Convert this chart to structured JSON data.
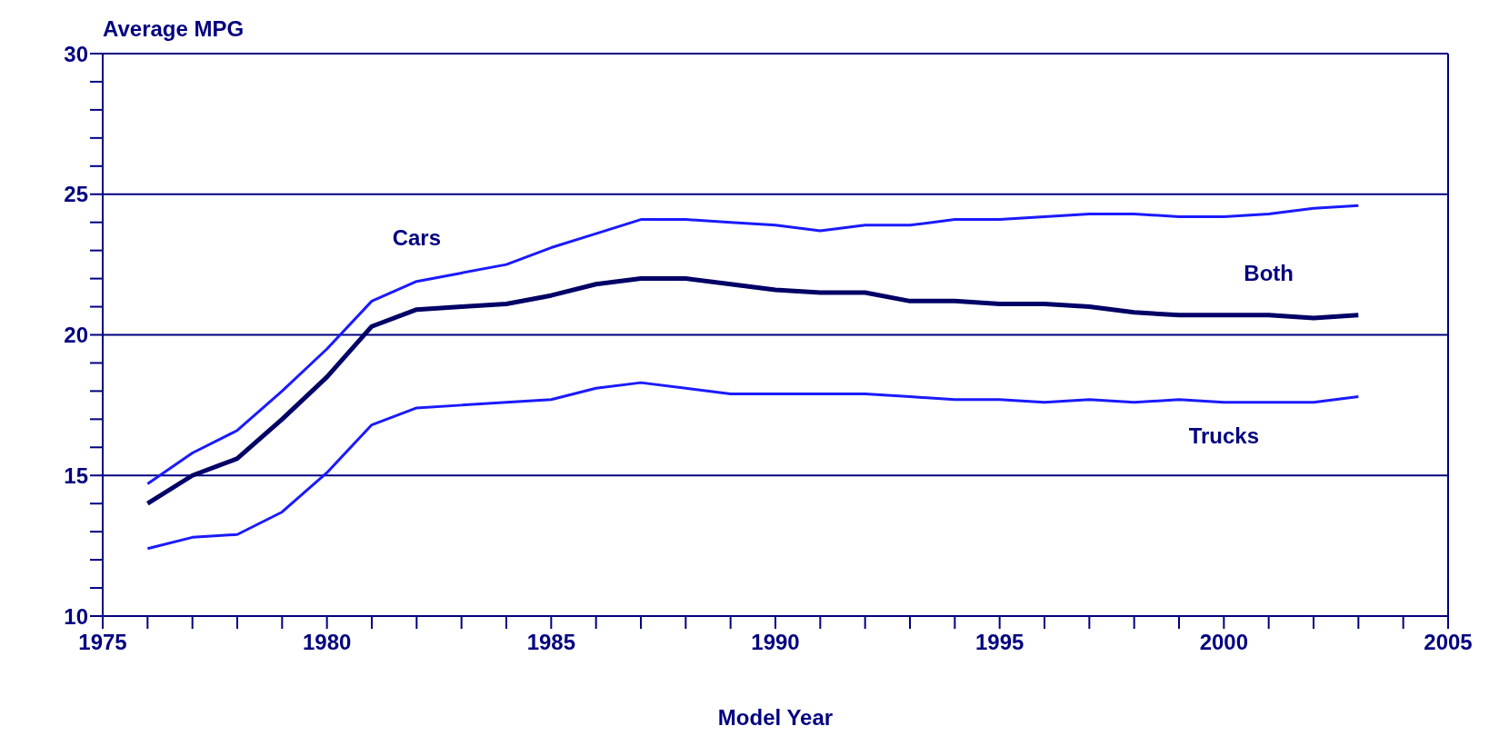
{
  "chart_data": {
    "type": "line",
    "ylabel": "Average MPG",
    "xlabel": "Model Year",
    "x": [
      1976,
      1977,
      1978,
      1979,
      1980,
      1981,
      1982,
      1983,
      1984,
      1985,
      1986,
      1987,
      1988,
      1989,
      1990,
      1991,
      1992,
      1993,
      1994,
      1995,
      1996,
      1997,
      1998,
      1999,
      2000,
      2001,
      2002,
      2003
    ],
    "series": [
      {
        "name": "Cars",
        "color": "#1a1aff",
        "values": [
          14.7,
          15.8,
          16.6,
          18.0,
          19.5,
          21.2,
          21.9,
          22.2,
          22.5,
          23.1,
          23.6,
          24.1,
          24.1,
          24.0,
          23.9,
          23.7,
          23.9,
          23.9,
          24.1,
          24.1,
          24.2,
          24.3,
          24.3,
          24.2,
          24.2,
          24.3,
          24.5,
          24.6
        ]
      },
      {
        "name": "Both",
        "color": "#000066",
        "values": [
          14.0,
          15.0,
          15.6,
          17.0,
          18.5,
          20.3,
          20.9,
          21.0,
          21.1,
          21.4,
          21.8,
          22.0,
          22.0,
          21.8,
          21.6,
          21.5,
          21.5,
          21.2,
          21.2,
          21.1,
          21.1,
          21.0,
          20.8,
          20.7,
          20.7,
          20.7,
          20.6,
          20.7
        ]
      },
      {
        "name": "Trucks",
        "color": "#1a1aff",
        "values": [
          12.4,
          12.8,
          12.9,
          13.7,
          15.1,
          16.8,
          17.4,
          17.5,
          17.6,
          17.7,
          18.1,
          18.3,
          18.1,
          17.9,
          17.9,
          17.9,
          17.9,
          17.8,
          17.7,
          17.7,
          17.6,
          17.7,
          17.6,
          17.7,
          17.6,
          17.6,
          17.6,
          17.8
        ]
      }
    ],
    "xlim": [
      1975,
      2005
    ],
    "xticks": [
      1975,
      {
        "value": 1976,
        "label": null
      },
      {
        "value": 1977,
        "label": null
      },
      {
        "value": 1978,
        "label": null
      },
      {
        "value": 1979,
        "label": null
      },
      1980,
      {
        "value": 1981,
        "label": null
      },
      {
        "value": 1982,
        "label": null
      },
      {
        "value": 1983,
        "label": null
      },
      {
        "value": 1984,
        "label": null
      },
      1985,
      {
        "value": 1986,
        "label": null
      },
      {
        "value": 1987,
        "label": null
      },
      {
        "value": 1988,
        "label": null
      },
      {
        "value": 1989,
        "label": null
      },
      1990,
      {
        "value": 1991,
        "label": null
      },
      {
        "value": 1992,
        "label": null
      },
      {
        "value": 1993,
        "label": null
      },
      {
        "value": 1994,
        "label": null
      },
      1995,
      {
        "value": 1996,
        "label": null
      },
      {
        "value": 1997,
        "label": null
      },
      {
        "value": 1998,
        "label": null
      },
      {
        "value": 1999,
        "label": null
      },
      2000,
      {
        "value": 2001,
        "label": null
      },
      {
        "value": 2002,
        "label": null
      },
      {
        "value": 2003,
        "label": null
      },
      {
        "value": 2004,
        "label": null
      },
      2005
    ],
    "ylim": [
      10,
      30
    ],
    "yticks": [
      10,
      {
        "value": 11,
        "label": null
      },
      {
        "value": 12,
        "label": null
      },
      {
        "value": 13,
        "label": null
      },
      {
        "value": 14,
        "label": null
      },
      15,
      {
        "value": 16,
        "label": null
      },
      {
        "value": 17,
        "label": null
      },
      {
        "value": 18,
        "label": null
      },
      {
        "value": 19,
        "label": null
      },
      20,
      {
        "value": 21,
        "label": null
      },
      {
        "value": 22,
        "label": null
      },
      {
        "value": 23,
        "label": null
      },
      {
        "value": 24,
        "label": null
      },
      25,
      {
        "value": 26,
        "label": null
      },
      {
        "value": 27,
        "label": null
      },
      {
        "value": 28,
        "label": null
      },
      {
        "value": 29,
        "label": null
      },
      30
    ],
    "grid": "y",
    "legend": false,
    "marker": "none",
    "line_style": "solid"
  }
}
